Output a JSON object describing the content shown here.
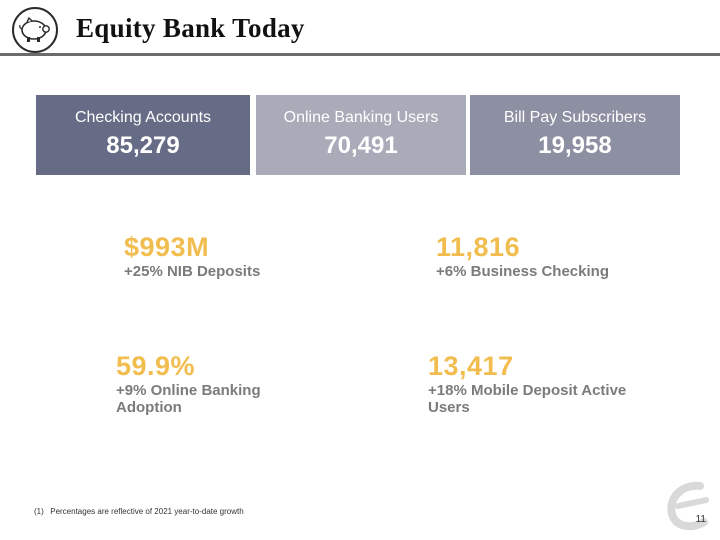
{
  "header": {
    "title": "Equity Bank Today"
  },
  "metric_boxes": [
    {
      "label": "Checking Accounts",
      "value": "85,279",
      "color": "#676c86"
    },
    {
      "label": "Online Banking Users",
      "value": "70,491",
      "color": "#a9abb8"
    },
    {
      "label": "Bill Pay Subscribers",
      "value": "19,958",
      "color": "#8d8fa2"
    }
  ],
  "stats": [
    {
      "value": "$993M",
      "description": "+25% NIB Deposits"
    },
    {
      "value": "11,816",
      "description": "+6% Business Checking"
    },
    {
      "value": "59.9%",
      "description": "+9% Online Banking Adoption"
    },
    {
      "value": "13,417",
      "description": "+18% Mobile Deposit Active Users"
    }
  ],
  "footnote": {
    "index": "(1)",
    "text": "Percentages are reflective of 2021 year-to-date growth"
  },
  "page_number": "11",
  "colors": {
    "accent": "#f2bd4f",
    "stat_text": "#7b7b7b",
    "rule": "#6b6b6b"
  },
  "icons": {
    "logo": "piggy-bank-icon",
    "watermark": "equity-e-icon"
  }
}
